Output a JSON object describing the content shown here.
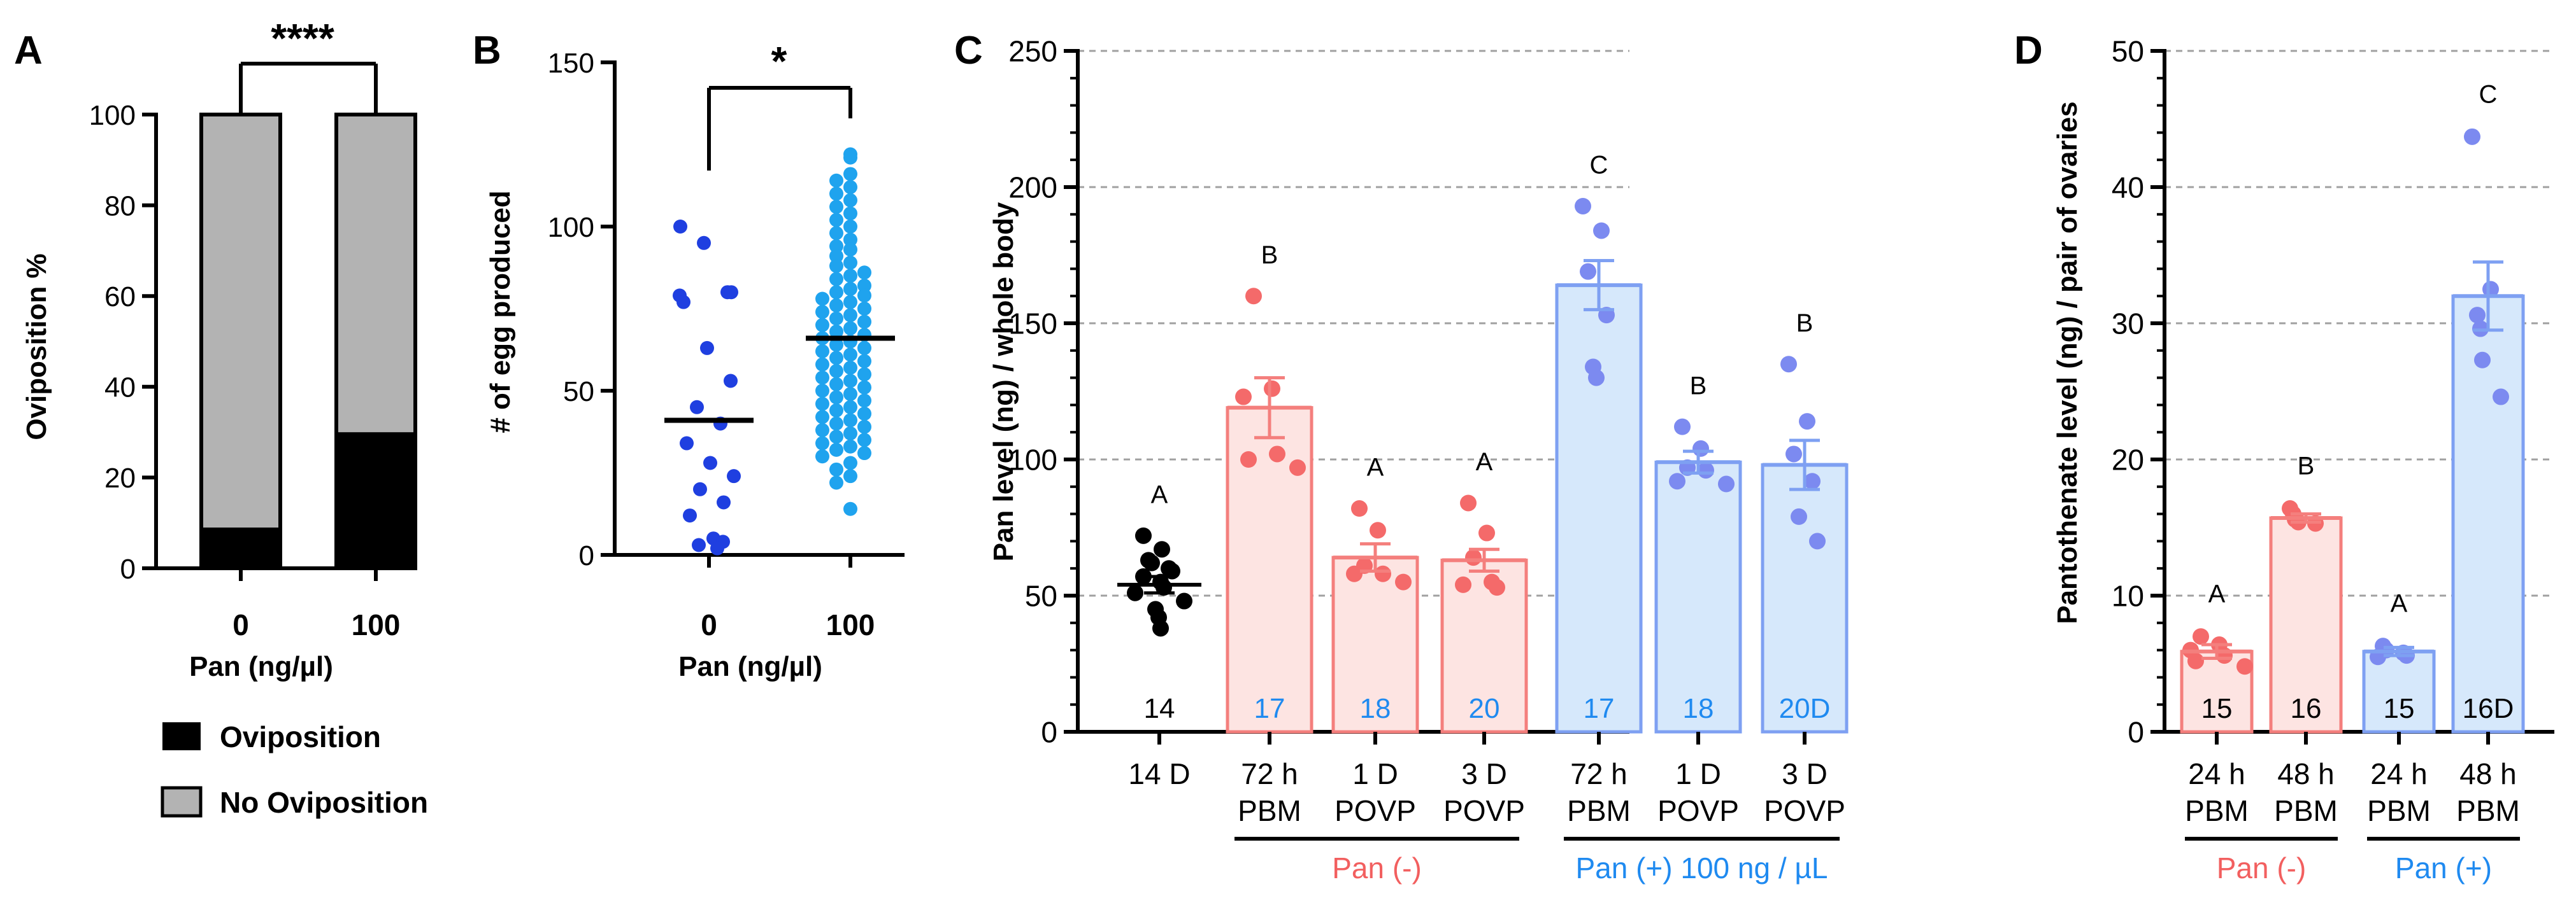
{
  "colors": {
    "black": "#000000",
    "grey": "#b3b3b3",
    "dark_blue": "#1f3fe0",
    "light_blue": "#1fa3ee",
    "pink_fill": "#fde4e2",
    "pink_edge": "#f47f7d",
    "pink_dot": "#f46a6a",
    "blue_fill": "#d6e8fb",
    "blue_edge": "#7ea0f2",
    "blue_dot": "#7c8af0",
    "pink_text": "#f25f5f",
    "blue_text": "#1f8af0"
  },
  "chart_data": [
    {
      "panel": "A",
      "type": "bar",
      "stacked": true,
      "categories": [
        "0",
        "100"
      ],
      "series": [
        {
          "name": "Oviposition",
          "values": [
            9,
            30
          ]
        },
        {
          "name": "No Oviposition",
          "values": [
            91,
            70
          ]
        }
      ],
      "ylabel": "Oviposition %",
      "xlabel": "Pan (ng/µl)",
      "ylim": [
        0,
        100
      ],
      "yticks": [
        "0",
        "20",
        "40",
        "60",
        "80",
        "100"
      ],
      "significance": "****",
      "legend_items": [
        "Oviposition",
        "No Oviposition"
      ]
    },
    {
      "panel": "B",
      "type": "scatter",
      "categories": [
        "0",
        "100"
      ],
      "ylabel": "# of egg produced",
      "xlabel": "Pan (ng/µl)",
      "ylim": [
        0,
        150
      ],
      "yticks": [
        "0",
        "50",
        "100",
        "150"
      ],
      "significance": "*",
      "means": [
        41,
        66
      ],
      "series": [
        {
          "name": "0",
          "values": [
            100,
            95,
            80,
            79,
            80,
            77,
            63,
            53,
            45,
            40,
            34,
            28,
            24,
            20,
            16,
            12,
            5,
            4,
            2,
            3
          ]
        },
        {
          "name": "100",
          "values": [
            122,
            121,
            116,
            114,
            112,
            110,
            108,
            106,
            104,
            102,
            100,
            98,
            96,
            94,
            93,
            91,
            89,
            88,
            86,
            85,
            84,
            82,
            81,
            80,
            79,
            78,
            77,
            76,
            75,
            74,
            73,
            72,
            71,
            70,
            69,
            68,
            67,
            66,
            65,
            64,
            63,
            62,
            61,
            60,
            59,
            58,
            57,
            56,
            55,
            54,
            53,
            52,
            51,
            50,
            49,
            48,
            47,
            46,
            45,
            44,
            43,
            42,
            41,
            40,
            39,
            38,
            37,
            36,
            35,
            34,
            33,
            32,
            31,
            30,
            28,
            26,
            24,
            22,
            14
          ]
        }
      ]
    },
    {
      "panel": "C",
      "type": "bar",
      "ylabel": "Pan level (ng) / whole body",
      "ylim": [
        0,
        250
      ],
      "yticks": [
        "0",
        "50",
        "100",
        "150",
        "200",
        "250"
      ],
      "categories": [
        "14 D",
        "72 h PBM",
        "1 D POVP",
        "3 D POVP",
        "72 h PBM",
        "1 D POVP",
        "3 D POVP"
      ],
      "x_line1": [
        "14 D",
        "72 h",
        "1 D",
        "3 D",
        "72 h",
        "1 D",
        "3 D"
      ],
      "x_line2": [
        "",
        "PBM",
        "POVP",
        "POVP",
        "PBM",
        "POVP",
        "POVP"
      ],
      "means": [
        54,
        119,
        64,
        63,
        164,
        99,
        98
      ],
      "sems": [
        3,
        11,
        5,
        4,
        9,
        4,
        9
      ],
      "letters": [
        "A",
        "B",
        "A",
        "A",
        "C",
        "B",
        "B"
      ],
      "n_labels": [
        "14",
        "17",
        "18",
        "20",
        "17",
        "18",
        "20D"
      ],
      "groups": [
        {
          "label": "Pan (-)",
          "start": 1,
          "end": 3
        },
        {
          "label": "Pan (+) 100 ng / µL",
          "start": 4,
          "end": 6
        }
      ],
      "points": [
        [
          72,
          67,
          63,
          62,
          60,
          59,
          57,
          55,
          53,
          51,
          48,
          45,
          42,
          38
        ],
        [
          160,
          126,
          123,
          102,
          100,
          97
        ],
        [
          82,
          74,
          61,
          58,
          58,
          55
        ],
        [
          84,
          73,
          64,
          55,
          54,
          53
        ],
        [
          193,
          184,
          169,
          153,
          134,
          130
        ],
        [
          112,
          104,
          97,
          96,
          92,
          91
        ],
        [
          135,
          114,
          102,
          92,
          79,
          70
        ]
      ]
    },
    {
      "panel": "D",
      "type": "bar",
      "ylabel": "Pantothenate level (ng) / pair of ovaries",
      "ylim": [
        0,
        50
      ],
      "yticks": [
        "0",
        "10",
        "20",
        "30",
        "40",
        "50"
      ],
      "categories": [
        "24 h PBM",
        "48 h PBM",
        "24 h PBM",
        "48 h PBM"
      ],
      "x_line1": [
        "24 h",
        "48 h",
        "24 h",
        "48 h"
      ],
      "x_line2": [
        "PBM",
        "PBM",
        "PBM",
        "PBM"
      ],
      "means": [
        5.9,
        15.7,
        5.9,
        32.0
      ],
      "sems": [
        0.5,
        0.3,
        0.3,
        2.5
      ],
      "letters": [
        "A",
        "B",
        "A",
        "C"
      ],
      "n_labels": [
        "15",
        "16",
        "15",
        "16D"
      ],
      "groups": [
        {
          "label": "Pan (-)",
          "start": 0,
          "end": 1
        },
        {
          "label": "Pan (+)",
          "start": 2,
          "end": 3
        }
      ],
      "points": [
        [
          7.0,
          6.4,
          6.0,
          5.6,
          5.2,
          4.8
        ],
        [
          16.4,
          16.0,
          15.6,
          15.4,
          15.3
        ],
        [
          6.3,
          6.0,
          5.8,
          5.6,
          5.5
        ],
        [
          43.7,
          32.5,
          30.6,
          29.6,
          27.3,
          24.6
        ]
      ]
    }
  ],
  "panel_labels": {
    "A": "A",
    "B": "B",
    "C": "C",
    "D": "D"
  }
}
